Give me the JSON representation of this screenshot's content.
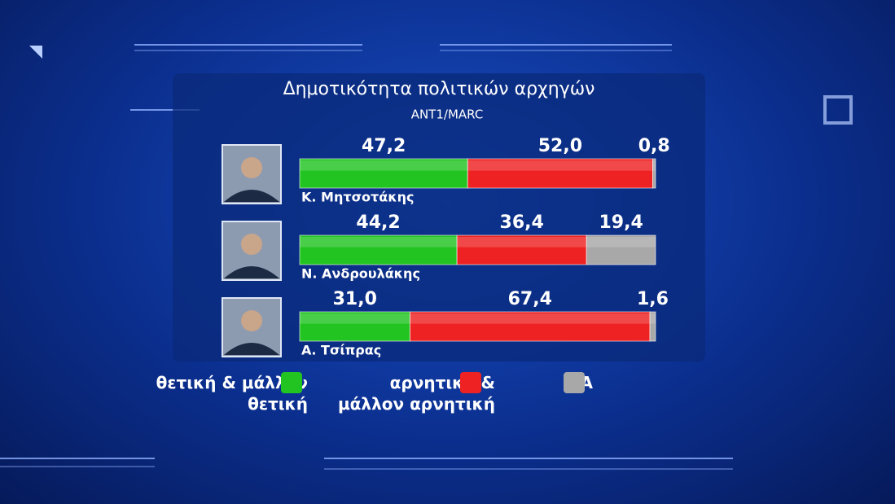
{
  "chart_data": {
    "type": "stacked-bar",
    "title": "Δημοτικότητα πολιτικών αρχηγών",
    "subtitle": "ΑΝΤ1/MARC",
    "categories": [
      "Κ. Μητσοτάκης",
      "Ν. Ανδρουλάκης",
      "Α. Τσίπρας"
    ],
    "series": [
      {
        "name": "θετική & μάλλον θετική",
        "color": "#22c422",
        "values": [
          47.2,
          44.2,
          31.0
        ],
        "value_labels": [
          "47,2",
          "44,2",
          "31,0"
        ]
      },
      {
        "name": "αρνητική & μάλλον αρνητική",
        "color": "#ee2222",
        "values": [
          52.0,
          36.4,
          67.4
        ],
        "value_labels": [
          "52,0",
          "36,4",
          "67,4"
        ]
      },
      {
        "name": "ΔΑ",
        "color": "#a8a8a8",
        "values": [
          0.8,
          19.4,
          1.6
        ],
        "value_labels": [
          "0,8",
          "19,4",
          "1,6"
        ]
      }
    ]
  }
}
